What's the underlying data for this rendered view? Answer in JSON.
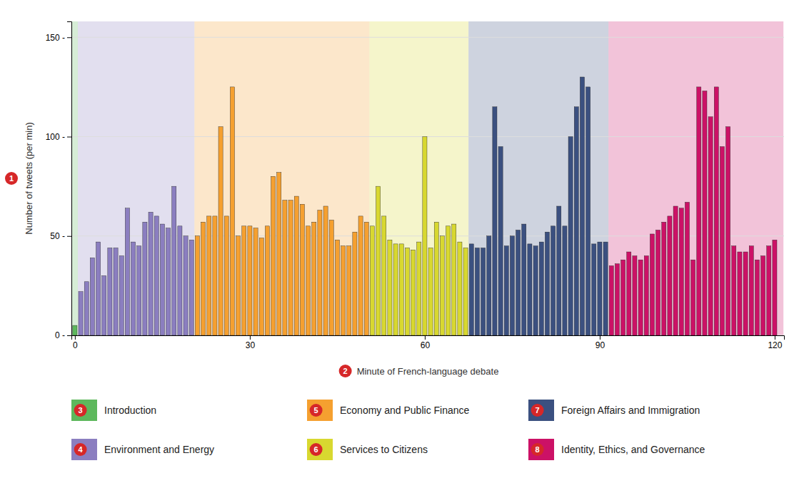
{
  "chart_data": {
    "type": "bar",
    "xlabel": "Minute of French-language debate",
    "ylabel": "Number of tweets (per min)",
    "ylabel_badge": "1",
    "xlabel_badge": "2",
    "x": [
      0,
      1,
      2,
      3,
      4,
      5,
      6,
      7,
      8,
      9,
      10,
      11,
      12,
      13,
      14,
      15,
      16,
      17,
      18,
      19,
      20,
      21,
      22,
      23,
      24,
      25,
      26,
      27,
      28,
      29,
      30,
      31,
      32,
      33,
      34,
      35,
      36,
      37,
      38,
      39,
      40,
      41,
      42,
      43,
      44,
      45,
      46,
      47,
      48,
      49,
      50,
      51,
      52,
      53,
      54,
      55,
      56,
      57,
      58,
      59,
      60,
      61,
      62,
      63,
      64,
      65,
      66,
      67,
      68,
      69,
      70,
      71,
      72,
      73,
      74,
      75,
      76,
      77,
      78,
      79,
      80,
      81,
      82,
      83,
      84,
      85,
      86,
      87,
      88,
      89,
      90,
      91,
      92,
      93,
      94,
      95,
      96,
      97,
      98,
      99,
      100,
      101,
      102,
      103,
      104,
      105,
      106,
      107,
      108,
      109,
      110,
      111,
      112,
      113,
      114,
      115,
      116,
      117,
      118,
      119,
      120
    ],
    "values": [
      5,
      22,
      27,
      39,
      47,
      30,
      44,
      44,
      40,
      64,
      47,
      45,
      57,
      62,
      60,
      56,
      54,
      75,
      55,
      50,
      48,
      50,
      57,
      60,
      60,
      105,
      60,
      125,
      50,
      55,
      55,
      54,
      49,
      55,
      80,
      82,
      68,
      68,
      70,
      66,
      55,
      57,
      63,
      65,
      58,
      48,
      45,
      45,
      52,
      60,
      57,
      55,
      75,
      60,
      48,
      46,
      46,
      44,
      43,
      47,
      100,
      44,
      57,
      50,
      55,
      56,
      47,
      44,
      46,
      44,
      44,
      50,
      115,
      95,
      45,
      50,
      53,
      56,
      46,
      45,
      47,
      52,
      55,
      65,
      55,
      100,
      115,
      130,
      125,
      46,
      47,
      47,
      35,
      36,
      38,
      42,
      40,
      38,
      40,
      51,
      53,
      57,
      60,
      65,
      64,
      67,
      38,
      125,
      123,
      110,
      125,
      95,
      105,
      45,
      42,
      42,
      45,
      38,
      40,
      45,
      48
    ],
    "sections": [
      {
        "name": "Introduction",
        "num": "3",
        "start": 0,
        "end": 1,
        "color": "#5DB85C"
      },
      {
        "name": "Environment and Energy",
        "num": "4",
        "start": 1,
        "end": 21,
        "color": "#8B7EC0"
      },
      {
        "name": "Economy and Public Finance",
        "num": "5",
        "start": 21,
        "end": 51,
        "color": "#F5A030"
      },
      {
        "name": "Services to Citizens",
        "num": "6",
        "start": 51,
        "end": 68,
        "color": "#D8D830"
      },
      {
        "name": "Foreign Affairs and Immigration",
        "num": "7",
        "start": 68,
        "end": 92,
        "color": "#3B5080"
      },
      {
        "name": "Identity, Ethics, and Governance",
        "num": "8",
        "start": 92,
        "end": 122,
        "color": "#CC1166"
      }
    ],
    "xlim": [
      -0.6,
      121.6
    ],
    "xticks": [
      0,
      30,
      60,
      90,
      120
    ],
    "ylim": [
      0,
      158
    ],
    "yticks": [
      {
        "value": 0,
        "label": "0 -"
      },
      {
        "value": 50,
        "label": "50 -"
      },
      {
        "value": 100,
        "label": "100 -"
      },
      {
        "value": 150,
        "label": "150 -"
      }
    ],
    "grid": true
  }
}
